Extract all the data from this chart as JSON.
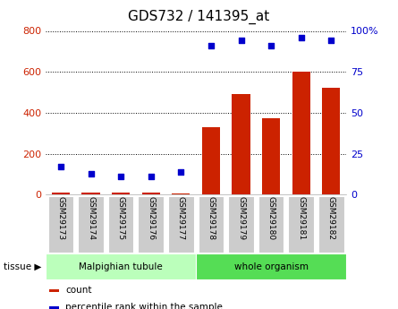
{
  "title": "GDS732 / 141395_at",
  "categories": [
    "GSM29173",
    "GSM29174",
    "GSM29175",
    "GSM29176",
    "GSM29177",
    "GSM29178",
    "GSM29179",
    "GSM29180",
    "GSM29181",
    "GSM29182"
  ],
  "counts": [
    10,
    10,
    10,
    10,
    5,
    330,
    490,
    375,
    600,
    520
  ],
  "percentiles": [
    17,
    13,
    11,
    11,
    14,
    91,
    94,
    91,
    96,
    94
  ],
  "bar_color": "#cc2200",
  "dot_color": "#0000cc",
  "ylim_left": [
    0,
    800
  ],
  "ylim_right": [
    0,
    100
  ],
  "yticks_left": [
    0,
    200,
    400,
    600,
    800
  ],
  "yticks_right": [
    0,
    25,
    50,
    75,
    100
  ],
  "yticklabels_right": [
    "0",
    "25",
    "50",
    "75",
    "100%"
  ],
  "tissue_groups": [
    {
      "label": "Malpighian tubule",
      "start": 0,
      "end": 5,
      "color": "#bbffbb"
    },
    {
      "label": "whole organism",
      "start": 5,
      "end": 10,
      "color": "#55dd55"
    }
  ],
  "tissue_label": "tissue ▶",
  "legend_items": [
    {
      "label": "count",
      "color": "#cc2200"
    },
    {
      "label": "percentile rank within the sample",
      "color": "#0000cc"
    }
  ],
  "bg_color": "#ffffff",
  "tick_label_bg": "#cccccc",
  "grid_color": "#000000",
  "title_fontsize": 11,
  "axis_fontsize": 8,
  "label_fontsize": 8
}
